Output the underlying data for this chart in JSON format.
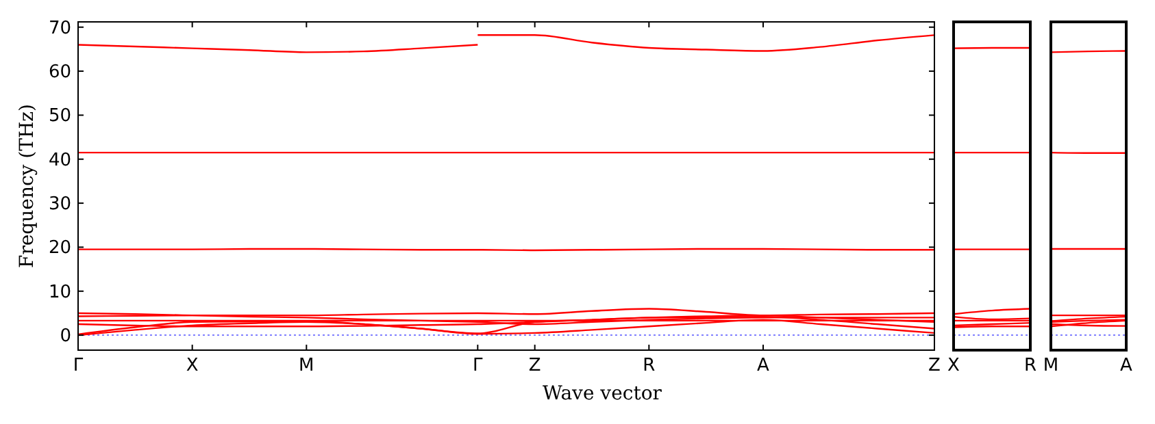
{
  "chart_data": [
    {
      "type": "line",
      "ylabel": "Frequency (THz)",
      "xlabel": "Wave vector",
      "ylim": [
        -3.4,
        71.2
      ],
      "yticks": [
        0,
        10,
        20,
        30,
        40,
        50,
        60,
        70
      ],
      "categories": [
        "Γ",
        null,
        "X",
        null,
        "M",
        null,
        null,
        "Γ",
        "Z",
        null,
        "R",
        null,
        "A",
        null,
        null,
        "Z"
      ],
      "ref_lines": [
        {
          "axis": "y",
          "value": 0,
          "color": "#7f7fff",
          "line_style": "dotted"
        }
      ],
      "series": [
        {
          "color": "#ff0000",
          "values": [
            66,
            65.6,
            65.2,
            64.8,
            64.3,
            64.5,
            65.2,
            66,
            null,
            null,
            null,
            null,
            null,
            null,
            null,
            null
          ]
        },
        {
          "color": "#ff0000",
          "values": [
            null,
            null,
            null,
            null,
            null,
            null,
            null,
            68.2,
            68.2,
            66.5,
            65.3,
            64.9,
            64.6,
            65.5,
            67,
            68.2
          ]
        },
        {
          "color": "#ff0000",
          "values": [
            41.5,
            41.5,
            41.5,
            41.5,
            41.5,
            41.5,
            41.5,
            41.5,
            41.5,
            41.5,
            41.5,
            41.5,
            41.5,
            41.5,
            41.5,
            41.5
          ]
        },
        {
          "color": "#ff0000",
          "values": [
            19.5,
            19.5,
            19.5,
            19.6,
            19.6,
            19.5,
            19.4,
            19.4,
            19.3,
            19.4,
            19.5,
            19.6,
            19.6,
            19.5,
            19.4,
            19.4
          ]
        },
        {
          "color": "#ff0000",
          "values": [
            0,
            1.2,
            2.2,
            2.7,
            3,
            2.5,
            1.5,
            0.3,
            0.5,
            1.2,
            2,
            2.8,
            3.5,
            2.5,
            1.5,
            0.5
          ]
        },
        {
          "color": "#ff0000",
          "values": [
            0.2,
            1.8,
            3,
            3.1,
            3.2,
            2.5,
            1.5,
            0.4,
            3,
            3.5,
            4,
            4.1,
            4.2,
            3.5,
            2.5,
            1.5
          ]
        },
        {
          "color": "#ff0000",
          "values": [
            3.3,
            3.3,
            3.3,
            3.3,
            3.3,
            3.3,
            3.3,
            3.3,
            3.3,
            3.3,
            3.3,
            3.3,
            3.3,
            3.3,
            3.3,
            3.3
          ]
        },
        {
          "color": "#ff0000",
          "values": [
            4.3,
            4.4,
            4.5,
            4.5,
            4.5,
            4.7,
            4.9,
            5,
            4.8,
            5.5,
            6,
            5.3,
            4.5,
            4.7,
            4.8,
            5
          ]
        },
        {
          "color": "#ff0000",
          "values": [
            5,
            4.8,
            4.5,
            4.2,
            4,
            3.6,
            3.3,
            3,
            2.5,
            3,
            3.5,
            3.8,
            4,
            4,
            4,
            4
          ]
        },
        {
          "color": "#ff0000",
          "values": [
            2.5,
            2.2,
            2,
            2,
            2,
            2.1,
            2.3,
            2.5,
            3,
            3.5,
            4,
            4.3,
            4.5,
            4,
            3.5,
            3
          ]
        }
      ]
    },
    {
      "type": "line",
      "tick_labels": "x",
      "ylim": [
        -3.4,
        71.2
      ],
      "categories": [
        "X",
        null,
        "R"
      ],
      "ref_lines": [
        {
          "axis": "y",
          "value": 0,
          "color": "#7f7fff",
          "line_style": "dotted"
        }
      ],
      "series": [
        {
          "color": "#ff0000",
          "values": [
            65.2,
            65.3,
            65.3
          ]
        },
        {
          "color": "#ff0000",
          "values": [
            41.5,
            41.5,
            41.5
          ]
        },
        {
          "color": "#ff0000",
          "values": [
            19.5,
            19.5,
            19.5
          ]
        },
        {
          "color": "#ff0000",
          "values": [
            4.8,
            5.6,
            6
          ]
        },
        {
          "color": "#ff0000",
          "values": [
            4.2,
            3.6,
            3.8
          ]
        },
        {
          "color": "#ff0000",
          "values": [
            3.3,
            3.3,
            3.3
          ]
        },
        {
          "color": "#ff0000",
          "values": [
            2.2,
            2.5,
            2.8
          ]
        },
        {
          "color": "#ff0000",
          "values": [
            1.8,
            2,
            2
          ]
        }
      ]
    },
    {
      "type": "line",
      "tick_labels": "x",
      "ylim": [
        -3.4,
        71.2
      ],
      "categories": [
        "M",
        null,
        "A"
      ],
      "ref_lines": [
        {
          "axis": "y",
          "value": 0,
          "color": "#7f7fff",
          "line_style": "dotted"
        }
      ],
      "series": [
        {
          "color": "#ff0000",
          "values": [
            64.3,
            64.5,
            64.6
          ]
        },
        {
          "color": "#ff0000",
          "values": [
            41.5,
            41.4,
            41.4
          ]
        },
        {
          "color": "#ff0000",
          "values": [
            19.6,
            19.6,
            19.6
          ]
        },
        {
          "color": "#ff0000",
          "values": [
            4.5,
            4.5,
            4.5
          ]
        },
        {
          "color": "#ff0000",
          "values": [
            3.2,
            3.8,
            4.2
          ]
        },
        {
          "color": "#ff0000",
          "values": [
            3,
            3.3,
            3.5
          ]
        },
        {
          "color": "#ff0000",
          "values": [
            2,
            2.8,
            3.3
          ]
        },
        {
          "color": "#ff0000",
          "values": [
            2.5,
            2.2,
            2.1
          ]
        }
      ]
    }
  ]
}
